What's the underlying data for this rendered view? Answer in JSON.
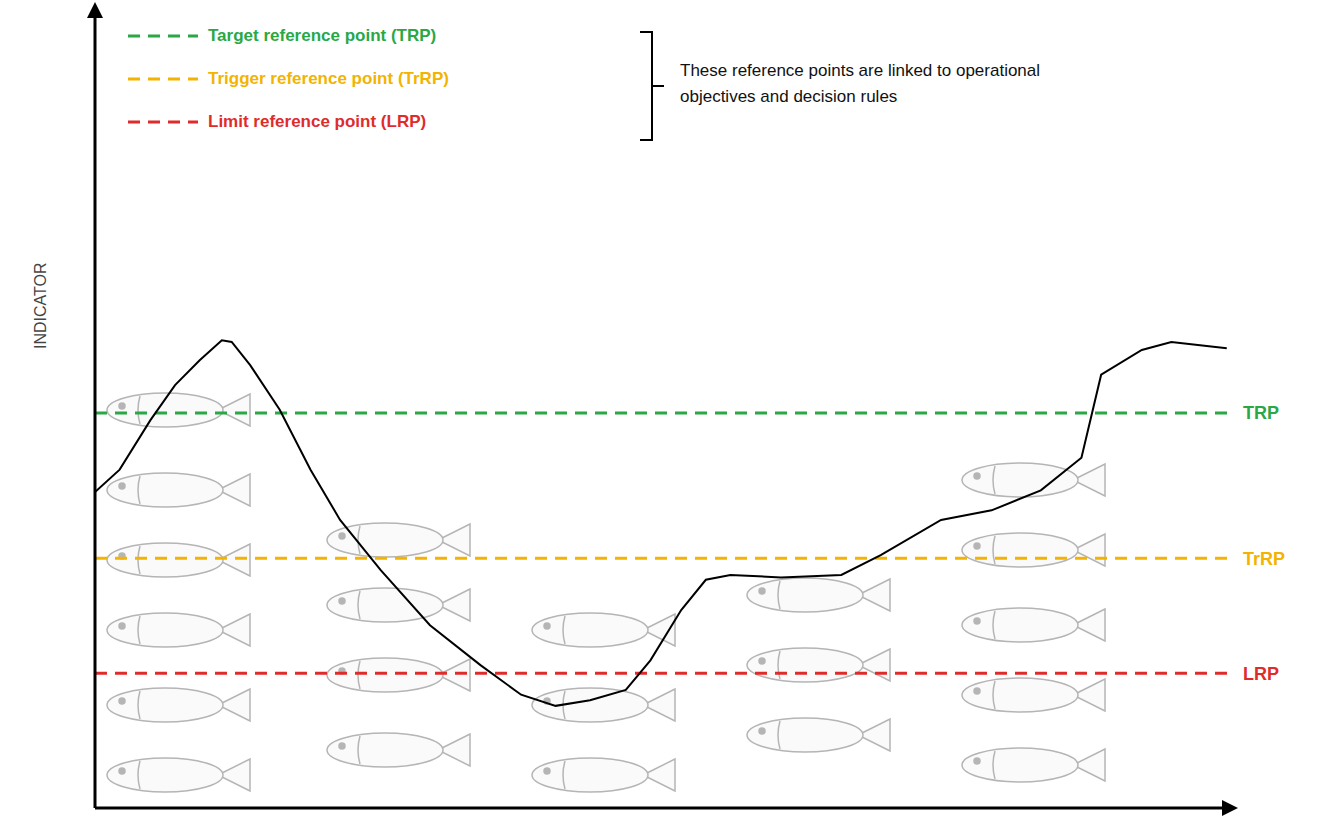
{
  "chart_data": {
    "type": "line",
    "y_label": "INDICATOR",
    "x": [
      0,
      2,
      4.5,
      6.5,
      8.5,
      10.3,
      11.1,
      12.6,
      15,
      17.5,
      19.9,
      23.2,
      27.2,
      31.3,
      34.6,
      37.4,
      40.2,
      43.1,
      45.1,
      47.6,
      49.6,
      51.6,
      55.7,
      60.6,
      63.8,
      68.7,
      72.8,
      76.8,
      80.1,
      81.7,
      85,
      87.4,
      91.9
    ],
    "values": [
      39.6,
      42.4,
      48.6,
      53.0,
      56.1,
      58.6,
      58.4,
      55.5,
      49.9,
      42.4,
      36.1,
      29.8,
      22.9,
      17.9,
      14.2,
      12.8,
      13.5,
      14.8,
      18.5,
      24.8,
      28.6,
      29.2,
      28.9,
      29.2,
      31.7,
      36.1,
      37.3,
      39.8,
      43.9,
      54.3,
      57.4,
      58.4,
      57.6
    ],
    "color": "#000000",
    "xlim": [
      0,
      92
    ],
    "ylim": [
      0,
      100
    ],
    "tick_labels": false,
    "reference_lines": [
      {
        "name": "TRP",
        "label": "Target reference point (TRP)",
        "value": 49.5,
        "color": "#2aa845"
      },
      {
        "name": "TrRP",
        "label": "Trigger reference point (TrRP)",
        "value": 31.3,
        "color": "#f2b400"
      },
      {
        "name": "LRP",
        "label": "Limit reference point (LRP)",
        "value": 16.9,
        "color": "#e02b2b"
      }
    ],
    "annotation": "These reference points are linked to operational objectives and decision rules"
  }
}
